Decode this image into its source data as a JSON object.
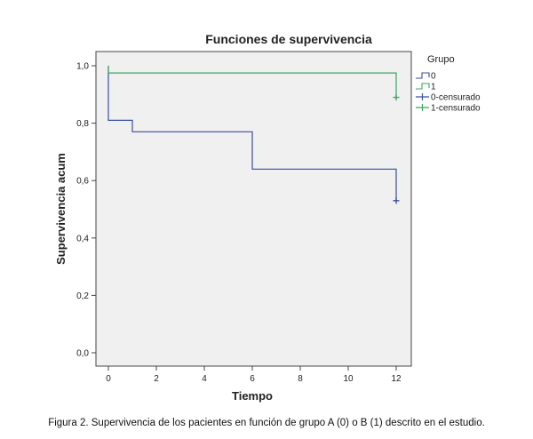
{
  "chart_data": {
    "type": "line",
    "title": "Funciones de supervivencia",
    "xlabel": "Tiempo",
    "ylabel": "Supervivencia acum",
    "xlim": [
      0,
      12
    ],
    "ylim": [
      0,
      1
    ],
    "x_ticks": [
      0,
      2,
      4,
      6,
      8,
      10,
      12
    ],
    "x_tick_labels": [
      "0",
      "2",
      "4",
      "6",
      "8",
      "10",
      "12"
    ],
    "y_ticks": [
      0,
      0.2,
      0.4,
      0.6,
      0.8,
      1.0
    ],
    "y_tick_labels": [
      "0,0",
      "0,2",
      "0,4",
      "0,6",
      "0,8",
      "1,0"
    ],
    "grid": false,
    "legend_title": "Grupo",
    "legend_position": "right",
    "series": [
      {
        "name": "0",
        "style": "step",
        "color": "#3a4f9f",
        "x": [
          0,
          0,
          1,
          1,
          6,
          6,
          12,
          12
        ],
        "y": [
          1.0,
          0.81,
          0.81,
          0.77,
          0.77,
          0.64,
          0.64,
          0.53
        ]
      },
      {
        "name": "1",
        "style": "step",
        "color": "#3aa65a",
        "x": [
          0,
          0,
          12,
          12
        ],
        "y": [
          1.0,
          0.975,
          0.975,
          0.89
        ]
      }
    ],
    "censored": [
      {
        "name": "0-censurado",
        "color": "#3a4f9f",
        "x": [
          12
        ],
        "y": [
          0.53
        ]
      },
      {
        "name": "1-censurado",
        "color": "#3aa65a",
        "x": [
          12
        ],
        "y": [
          0.89
        ]
      }
    ]
  },
  "caption": "Figura 2. Supervivencia de los pacientes en función de grupo A (0) o B (1) descrito en el estudio."
}
